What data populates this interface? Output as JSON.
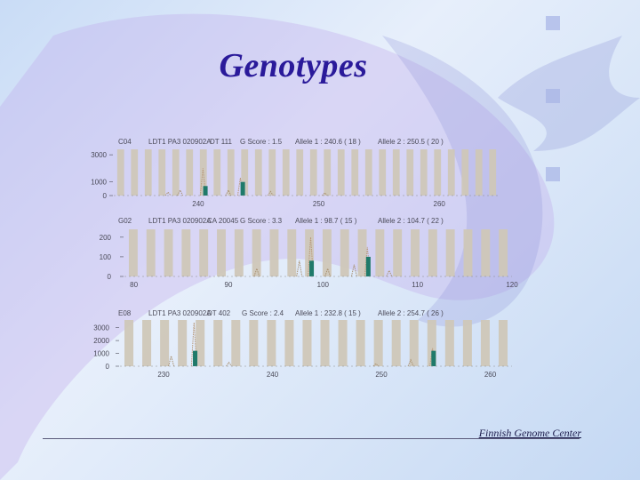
{
  "slide": {
    "title": "Genotypes",
    "footer": "Finnish Genome Center"
  },
  "chart_data": [
    {
      "type": "line",
      "header": {
        "well": "C04",
        "run": "LDT1 PA3 020902A",
        "marker": "DT 111",
        "gscore": "G Score : 1.5",
        "allele1": "Allele 1 : 240.6 ( 18 )",
        "allele2": "Allele 2 : 250.5 ( 20 )"
      },
      "ylim": [
        0,
        3400
      ],
      "yticks": [
        0,
        1000,
        3000
      ],
      "ytick_labels": [
        "0",
        "1000",
        "3000"
      ],
      "xlim": [
        233,
        265
      ],
      "xticks": [
        240,
        250,
        260
      ],
      "bin_count": 28,
      "peaks": [
        {
          "x": 237.5,
          "height": 250,
          "color": "#a89070"
        },
        {
          "x": 238.5,
          "height": 400,
          "color": "#a89070"
        },
        {
          "x": 240.4,
          "height": 2000,
          "color": "#b89878"
        },
        {
          "x": 240.6,
          "height": 700,
          "color": "#1f7a6a"
        },
        {
          "x": 242.5,
          "height": 400,
          "color": "#a89070"
        },
        {
          "x": 243.5,
          "height": 1300,
          "color": "#b89878"
        },
        {
          "x": 243.7,
          "height": 1000,
          "color": "#1f7a6a"
        },
        {
          "x": 246.0,
          "height": 300,
          "color": "#a89070"
        },
        {
          "x": 250.5,
          "height": 200,
          "color": "#a89070"
        }
      ]
    },
    {
      "type": "line",
      "header": {
        "well": "G02",
        "run": "LDT1 PA3 020902A",
        "marker": "CA 20045",
        "gscore": "G Score : 3.3",
        "allele1": "Allele 1 : 98.7 ( 15 )",
        "allele2": "Allele 2 : 104.7 ( 22 )"
      },
      "ylim": [
        0,
        240
      ],
      "yticks": [
        0,
        100,
        200
      ],
      "ytick_labels": [
        "0",
        "100",
        "200"
      ],
      "xlim": [
        79,
        120
      ],
      "xticks": [
        80,
        90,
        100,
        110,
        120
      ],
      "bin_count": 22,
      "peaks": [
        {
          "x": 93.0,
          "height": 40,
          "color": "#a89070"
        },
        {
          "x": 97.5,
          "height": 80,
          "color": "#a89070"
        },
        {
          "x": 98.7,
          "height": 200,
          "color": "#b89878"
        },
        {
          "x": 98.8,
          "height": 80,
          "color": "#1f7a6a"
        },
        {
          "x": 100.5,
          "height": 40,
          "color": "#a89070"
        },
        {
          "x": 103.3,
          "height": 60,
          "color": "#a89070"
        },
        {
          "x": 104.7,
          "height": 150,
          "color": "#b89878"
        },
        {
          "x": 104.8,
          "height": 100,
          "color": "#1f7a6a"
        },
        {
          "x": 107.0,
          "height": 30,
          "color": "#a89070"
        }
      ]
    },
    {
      "type": "line",
      "header": {
        "well": "E08",
        "run": "LDT1 PA3 020902A",
        "marker": "DT 402",
        "gscore": "G Score : 2.4",
        "allele1": "Allele 1 : 232.8 ( 15 )",
        "allele2": "Allele 2 : 254.7 ( 26 )"
      },
      "ylim": [
        0,
        3600
      ],
      "yticks": [
        0,
        1000,
        2000,
        3000
      ],
      "ytick_labels": [
        "0",
        "1000",
        "2000",
        "3000"
      ],
      "xlim": [
        226,
        262
      ],
      "xticks": [
        230,
        240,
        250,
        260
      ],
      "bin_count": 22,
      "peaks": [
        {
          "x": 230.7,
          "height": 800,
          "color": "#a89070"
        },
        {
          "x": 232.8,
          "height": 3400,
          "color": "#b89878"
        },
        {
          "x": 232.9,
          "height": 1200,
          "color": "#1f7a6a"
        },
        {
          "x": 236.0,
          "height": 300,
          "color": "#a89070"
        },
        {
          "x": 249.5,
          "height": 200,
          "color": "#a89070"
        },
        {
          "x": 252.7,
          "height": 500,
          "color": "#a89070"
        },
        {
          "x": 254.7,
          "height": 1400,
          "color": "#b89878"
        },
        {
          "x": 254.8,
          "height": 1200,
          "color": "#1f7a6a"
        }
      ]
    }
  ]
}
